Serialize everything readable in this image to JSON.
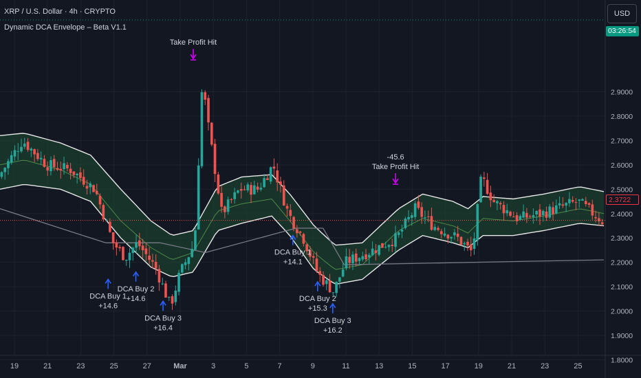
{
  "header": {
    "symbol": "XRP / U.S. Dollar · 4h · CRYPTO",
    "indicator": "Dynamic DCA Envelope – Beta V1.1"
  },
  "toolbar": {
    "currency_label": "USD"
  },
  "price_axis": {
    "labels": [
      "2.9000",
      "2.8000",
      "2.7000",
      "2.6000",
      "2.5000",
      "2.4000",
      "2.3000",
      "2.2000",
      "2.1000",
      "2.0000",
      "1.9000",
      "1.8000"
    ],
    "current_price": "2.3722",
    "countdown": "03:26:54"
  },
  "colors": {
    "background": "#131722",
    "grid": "#1e222d",
    "bull": "#26a69a",
    "bear": "#ef5350",
    "envelope_edge": "#e8e8e8",
    "envelope_fill": "#1e4a30",
    "midline": "#4e8a4a",
    "buy_arrow": "#2962ff",
    "tp_arrow": "#d500f9",
    "trend_line": "#787b86"
  },
  "chart_data": {
    "type": "candlestick",
    "symbol": "XRP / U.S. Dollar",
    "interval": "4h",
    "ylim": [
      1.8,
      3.0
    ],
    "x_ticks": [
      "19",
      "21",
      "23",
      "25",
      "27",
      "Mar",
      "3",
      "5",
      "7",
      "9",
      "11",
      "13",
      "15",
      "17",
      "19",
      "21",
      "23",
      "25"
    ],
    "price_path": [
      {
        "t": 0,
        "p": 2.55
      },
      {
        "t": 0.04,
        "p": 2.7
      },
      {
        "t": 0.08,
        "p": 2.6
      },
      {
        "t": 0.12,
        "p": 2.58
      },
      {
        "t": 0.16,
        "p": 2.5
      },
      {
        "t": 0.19,
        "p": 2.28
      },
      {
        "t": 0.21,
        "p": 2.22
      },
      {
        "t": 0.23,
        "p": 2.28
      },
      {
        "t": 0.26,
        "p": 2.18
      },
      {
        "t": 0.285,
        "p": 2.02
      },
      {
        "t": 0.3,
        "p": 2.15
      },
      {
        "t": 0.325,
        "p": 2.28
      },
      {
        "t": 0.338,
        "p": 2.95
      },
      {
        "t": 0.345,
        "p": 2.8
      },
      {
        "t": 0.37,
        "p": 2.4
      },
      {
        "t": 0.4,
        "p": 2.5
      },
      {
        "t": 0.43,
        "p": 2.5
      },
      {
        "t": 0.455,
        "p": 2.6
      },
      {
        "t": 0.48,
        "p": 2.4
      },
      {
        "t": 0.505,
        "p": 2.3
      },
      {
        "t": 0.53,
        "p": 2.15
      },
      {
        "t": 0.555,
        "p": 2.08
      },
      {
        "t": 0.575,
        "p": 2.2
      },
      {
        "t": 0.62,
        "p": 2.25
      },
      {
        "t": 0.66,
        "p": 2.3
      },
      {
        "t": 0.69,
        "p": 2.42
      },
      {
        "t": 0.72,
        "p": 2.35
      },
      {
        "t": 0.76,
        "p": 2.3
      },
      {
        "t": 0.785,
        "p": 2.24
      },
      {
        "t": 0.8,
        "p": 2.55
      },
      {
        "t": 0.82,
        "p": 2.45
      },
      {
        "t": 0.86,
        "p": 2.38
      },
      {
        "t": 0.9,
        "p": 2.4
      },
      {
        "t": 0.96,
        "p": 2.45
      },
      {
        "t": 1.0,
        "p": 2.37
      }
    ],
    "envelope": [
      {
        "t": 0,
        "upper": 2.72,
        "mid": 2.6,
        "lower": 2.5
      },
      {
        "t": 0.04,
        "upper": 2.73,
        "mid": 2.62,
        "lower": 2.52
      },
      {
        "t": 0.1,
        "upper": 2.69,
        "mid": 2.58,
        "lower": 2.5
      },
      {
        "t": 0.15,
        "upper": 2.64,
        "mid": 2.52,
        "lower": 2.45
      },
      {
        "t": 0.2,
        "upper": 2.5,
        "mid": 2.37,
        "lower": 2.3
      },
      {
        "t": 0.25,
        "upper": 2.37,
        "mid": 2.26,
        "lower": 2.18
      },
      {
        "t": 0.285,
        "upper": 2.31,
        "mid": 2.21,
        "lower": 2.14
      },
      {
        "t": 0.32,
        "upper": 2.33,
        "mid": 2.24,
        "lower": 2.16
      },
      {
        "t": 0.36,
        "upper": 2.51,
        "mid": 2.41,
        "lower": 2.33
      },
      {
        "t": 0.4,
        "upper": 2.55,
        "mid": 2.44,
        "lower": 2.36
      },
      {
        "t": 0.45,
        "upper": 2.56,
        "mid": 2.46,
        "lower": 2.39
      },
      {
        "t": 0.48,
        "upper": 2.48,
        "mid": 2.37,
        "lower": 2.31
      },
      {
        "t": 0.52,
        "upper": 2.35,
        "mid": 2.24,
        "lower": 2.17
      },
      {
        "t": 0.555,
        "upper": 2.27,
        "mid": 2.17,
        "lower": 2.11
      },
      {
        "t": 0.6,
        "upper": 2.28,
        "mid": 2.19,
        "lower": 2.13
      },
      {
        "t": 0.66,
        "upper": 2.42,
        "mid": 2.33,
        "lower": 2.25
      },
      {
        "t": 0.7,
        "upper": 2.48,
        "mid": 2.38,
        "lower": 2.31
      },
      {
        "t": 0.75,
        "upper": 2.45,
        "mid": 2.35,
        "lower": 2.28
      },
      {
        "t": 0.775,
        "upper": 2.42,
        "mid": 2.32,
        "lower": 2.26
      },
      {
        "t": 0.8,
        "upper": 2.47,
        "mid": 2.38,
        "lower": 2.31
      },
      {
        "t": 0.85,
        "upper": 2.46,
        "mid": 2.37,
        "lower": 2.31
      },
      {
        "t": 0.9,
        "upper": 2.48,
        "mid": 2.39,
        "lower": 2.33
      },
      {
        "t": 0.96,
        "upper": 2.51,
        "mid": 2.42,
        "lower": 2.36
      },
      {
        "t": 1.0,
        "upper": 2.49,
        "mid": 2.4,
        "lower": 2.35
      }
    ],
    "trend_lines": [
      {
        "from": {
          "t": 0.0,
          "p": 2.42
        },
        "to": {
          "t": 0.175,
          "p": 2.28
        }
      },
      {
        "from": {
          "t": 0.175,
          "p": 2.28
        },
        "to": {
          "t": 0.265,
          "p": 2.28
        }
      },
      {
        "from": {
          "t": 0.265,
          "p": 2.28
        },
        "to": {
          "t": 0.34,
          "p": 2.24
        }
      },
      {
        "from": {
          "t": 0.34,
          "p": 2.24
        },
        "to": {
          "t": 0.49,
          "p": 2.34
        }
      },
      {
        "from": {
          "t": 0.49,
          "p": 2.34
        },
        "to": {
          "t": 0.535,
          "p": 2.34
        }
      },
      {
        "from": {
          "t": 0.535,
          "p": 2.34
        },
        "to": {
          "t": 0.57,
          "p": 2.19
        }
      },
      {
        "from": {
          "t": 0.57,
          "p": 2.19
        },
        "to": {
          "t": 1.0,
          "p": 2.21
        }
      }
    ],
    "annotations": [
      {
        "kind": "buy",
        "t": 0.179,
        "p": 2.13,
        "label": "DCA Buy 1",
        "value": "+14.6"
      },
      {
        "kind": "buy",
        "t": 0.225,
        "p": 2.16,
        "label": "DCA Buy 2",
        "value": "+14.6"
      },
      {
        "kind": "buy",
        "t": 0.27,
        "p": 2.04,
        "label": "DCA Buy 3",
        "value": "+16.4"
      },
      {
        "kind": "buy",
        "t": 0.485,
        "p": 2.31,
        "label": "DCA Buy 1",
        "value": "+14.1"
      },
      {
        "kind": "buy",
        "t": 0.526,
        "p": 2.12,
        "label": "DCA Buy 2",
        "value": "+15.3"
      },
      {
        "kind": "buy",
        "t": 0.551,
        "p": 2.03,
        "label": "DCA Buy 3",
        "value": "+16.2"
      },
      {
        "kind": "tp",
        "t": 0.32,
        "p": 3.07,
        "label": "Take Profit Hit",
        "value": ""
      },
      {
        "kind": "tp",
        "t": 0.655,
        "p": 2.56,
        "label": "Take Profit Hit",
        "value": "-45.6"
      }
    ]
  }
}
